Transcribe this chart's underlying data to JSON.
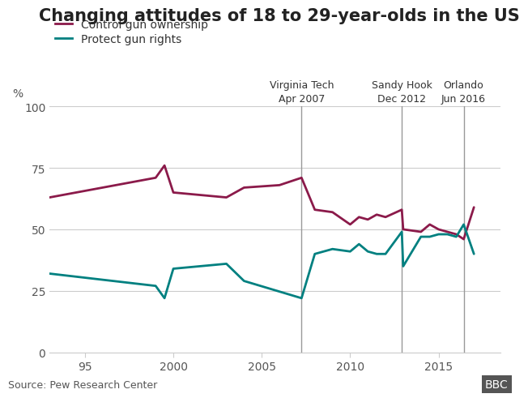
{
  "title": "Changing attitudes of 18 to 29-year-olds in the US",
  "ylabel": "%",
  "ylim": [
    0,
    100
  ],
  "yticks": [
    0,
    25,
    50,
    75,
    100
  ],
  "xlim": [
    1993,
    2018.5
  ],
  "xticks": [
    1995,
    2000,
    2005,
    2010,
    2015
  ],
  "xticklabels": [
    "95",
    "2000",
    "2005",
    "2010",
    "2015"
  ],
  "control_color": "#8B1A4A",
  "protect_color": "#008080",
  "vlines": [
    2007.25,
    2012.92,
    2016.42
  ],
  "vline_labels": [
    "Virginia Tech\nApr 2007",
    "Sandy Hook\nDec 2012",
    "Orlando\nJun 2016"
  ],
  "source": "Source: Pew Research Center",
  "control_data": [
    [
      1993,
      63
    ],
    [
      1999,
      71
    ],
    [
      1999.5,
      76
    ],
    [
      2000,
      65
    ],
    [
      2003,
      63
    ],
    [
      2004,
      67
    ],
    [
      2006,
      68
    ],
    [
      2007.25,
      71
    ],
    [
      2008,
      58
    ],
    [
      2009,
      57
    ],
    [
      2010,
      52
    ],
    [
      2010.5,
      55
    ],
    [
      2011,
      54
    ],
    [
      2011.5,
      56
    ],
    [
      2012,
      55
    ],
    [
      2012.92,
      58
    ],
    [
      2013,
      50
    ],
    [
      2014,
      49
    ],
    [
      2014.5,
      52
    ],
    [
      2015,
      50
    ],
    [
      2015.5,
      49
    ],
    [
      2016,
      48
    ],
    [
      2016.42,
      46
    ],
    [
      2017,
      59
    ]
  ],
  "protect_data": [
    [
      1993,
      32
    ],
    [
      1999,
      27
    ],
    [
      1999.5,
      22
    ],
    [
      2000,
      34
    ],
    [
      2003,
      36
    ],
    [
      2004,
      29
    ],
    [
      2007.25,
      22
    ],
    [
      2008,
      40
    ],
    [
      2009,
      42
    ],
    [
      2010,
      41
    ],
    [
      2010.5,
      44
    ],
    [
      2011,
      41
    ],
    [
      2011.5,
      40
    ],
    [
      2012,
      40
    ],
    [
      2012.92,
      49
    ],
    [
      2013,
      35
    ],
    [
      2014,
      47
    ],
    [
      2014.5,
      47
    ],
    [
      2015,
      48
    ],
    [
      2015.5,
      48
    ],
    [
      2016,
      47
    ],
    [
      2016.42,
      52
    ],
    [
      2017,
      40
    ]
  ],
  "legend_items": [
    "Control gun ownership",
    "Protect gun rights"
  ],
  "title_fontsize": 15,
  "label_fontsize": 10,
  "tick_fontsize": 10,
  "source_fontsize": 9,
  "vline_label_fontsize": 9,
  "background_color": "#ffffff",
  "grid_color": "#cccccc"
}
